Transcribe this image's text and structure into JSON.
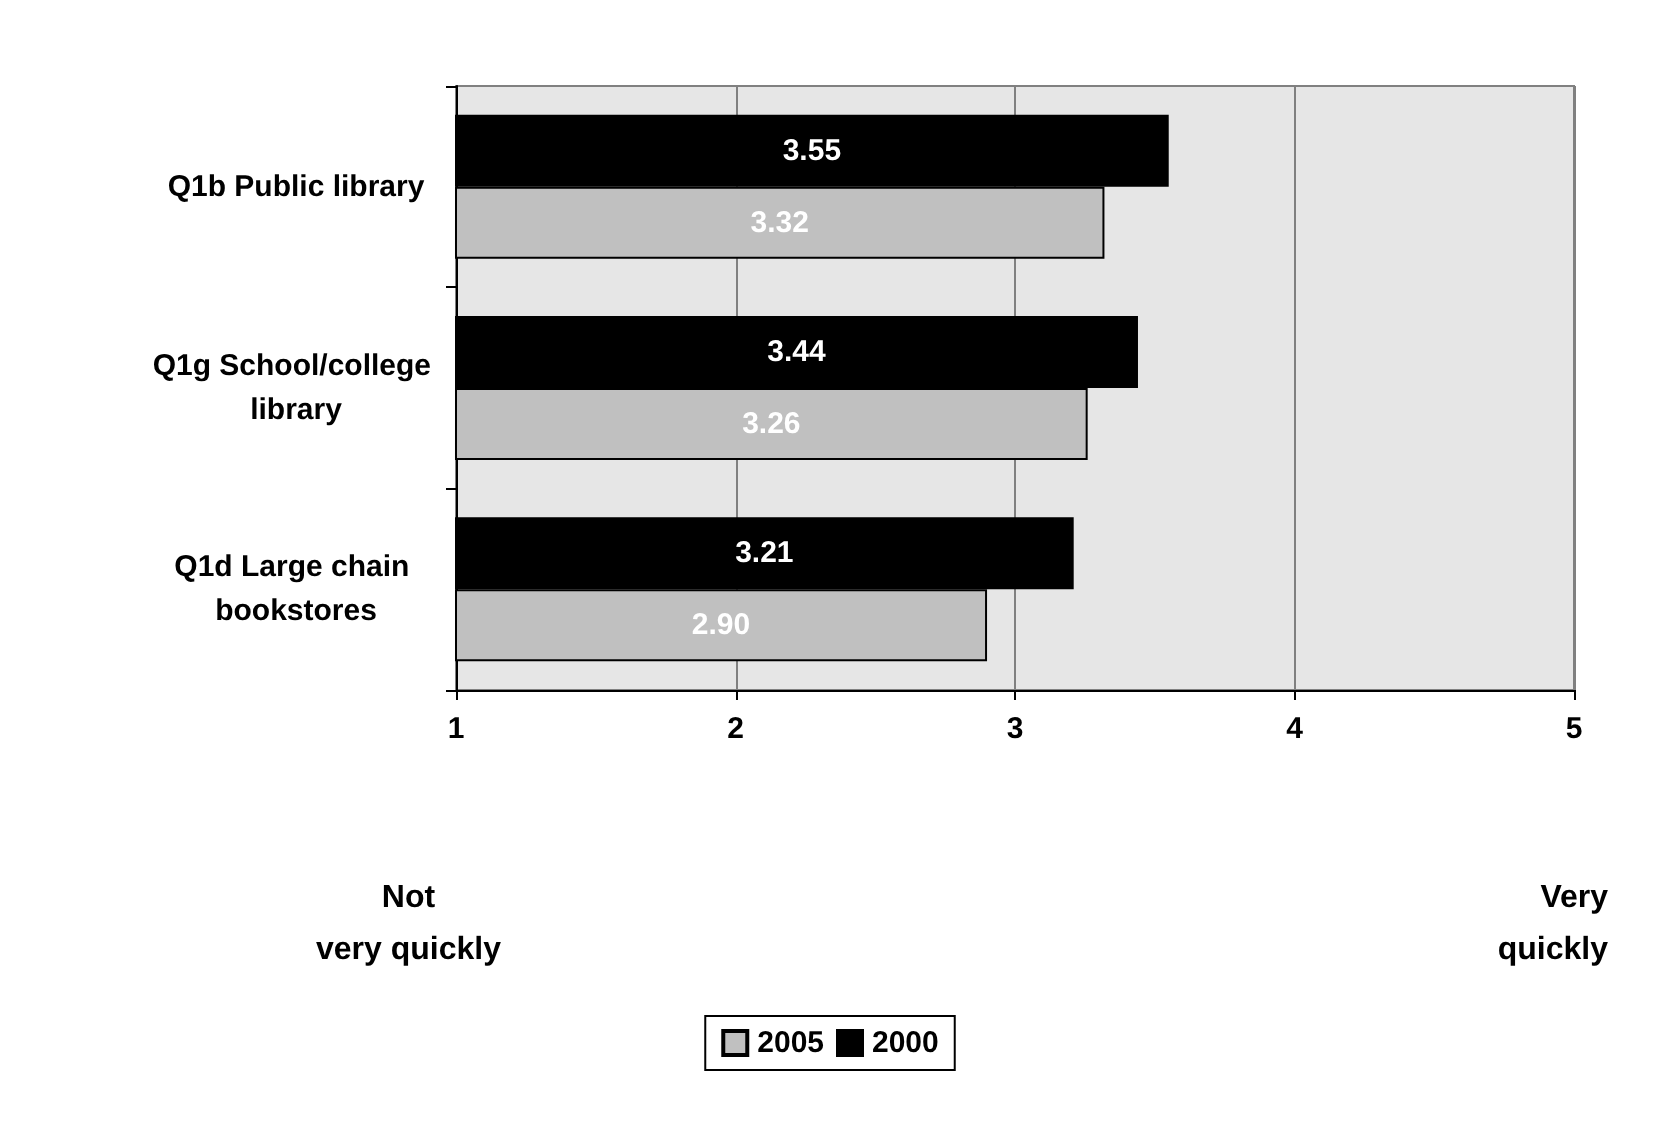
{
  "chart_data": {
    "type": "bar",
    "orientation": "horizontal",
    "categories": [
      "Q1b Public library",
      "Q1g School/college library",
      "Q1d Large chain bookstores"
    ],
    "series": [
      {
        "name": "2005",
        "color": "#c0c0c0",
        "values": [
          3.32,
          3.26,
          2.9
        ],
        "value_labels": [
          "3.32",
          "3.26",
          "2.90"
        ]
      },
      {
        "name": "2000",
        "color": "#000000",
        "values": [
          3.55,
          3.44,
          3.21
        ],
        "value_labels": [
          "3.55",
          "3.44",
          "3.21"
        ]
      }
    ],
    "xlim": [
      1,
      5
    ],
    "xticks": [
      1,
      2,
      3,
      4,
      5
    ],
    "grid": "x",
    "legend": "bottom",
    "annotations": [
      "Not very quickly",
      "Very quickly"
    ]
  }
}
